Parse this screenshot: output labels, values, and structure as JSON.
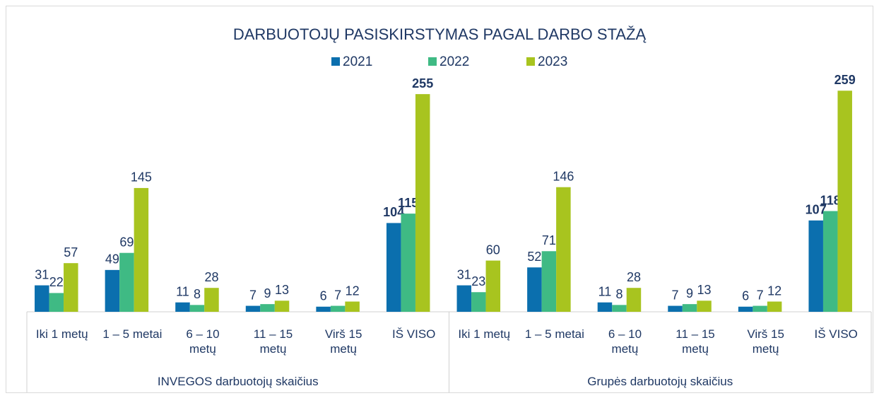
{
  "chart_data": {
    "type": "bar",
    "title": "DARBUOTOJŲ PASISKIRSTYMAS PAGAL DARBO STAŽĄ",
    "categories": [
      "Iki 1 metų",
      "1 – 5 metai",
      "6 – 10\nmetų",
      "11 – 15\nmetų",
      "Virš 15\nmetų",
      "IŠ VISO",
      "Iki 1 metų",
      "1 – 5 metai",
      "6 – 10\nmetų",
      "11 – 15\nmetų",
      "Virš 15\nmetų",
      "IŠ VISO"
    ],
    "groups": [
      "INVEGOS darbuotojų skaičius",
      "Grupės darbuotojų skaičius"
    ],
    "series": [
      {
        "name": "2021",
        "color": "#0b6fae",
        "values": [
          31,
          49,
          11,
          7,
          6,
          104,
          31,
          52,
          11,
          7,
          6,
          107
        ]
      },
      {
        "name": "2022",
        "color": "#3fba84",
        "values": [
          22,
          69,
          8,
          9,
          7,
          115,
          23,
          71,
          8,
          9,
          7,
          118
        ]
      },
      {
        "name": "2023",
        "color": "#a8c41f",
        "values": [
          57,
          145,
          28,
          13,
          12,
          255,
          60,
          146,
          28,
          13,
          12,
          259
        ]
      }
    ],
    "ylim": [
      0,
      270
    ]
  }
}
